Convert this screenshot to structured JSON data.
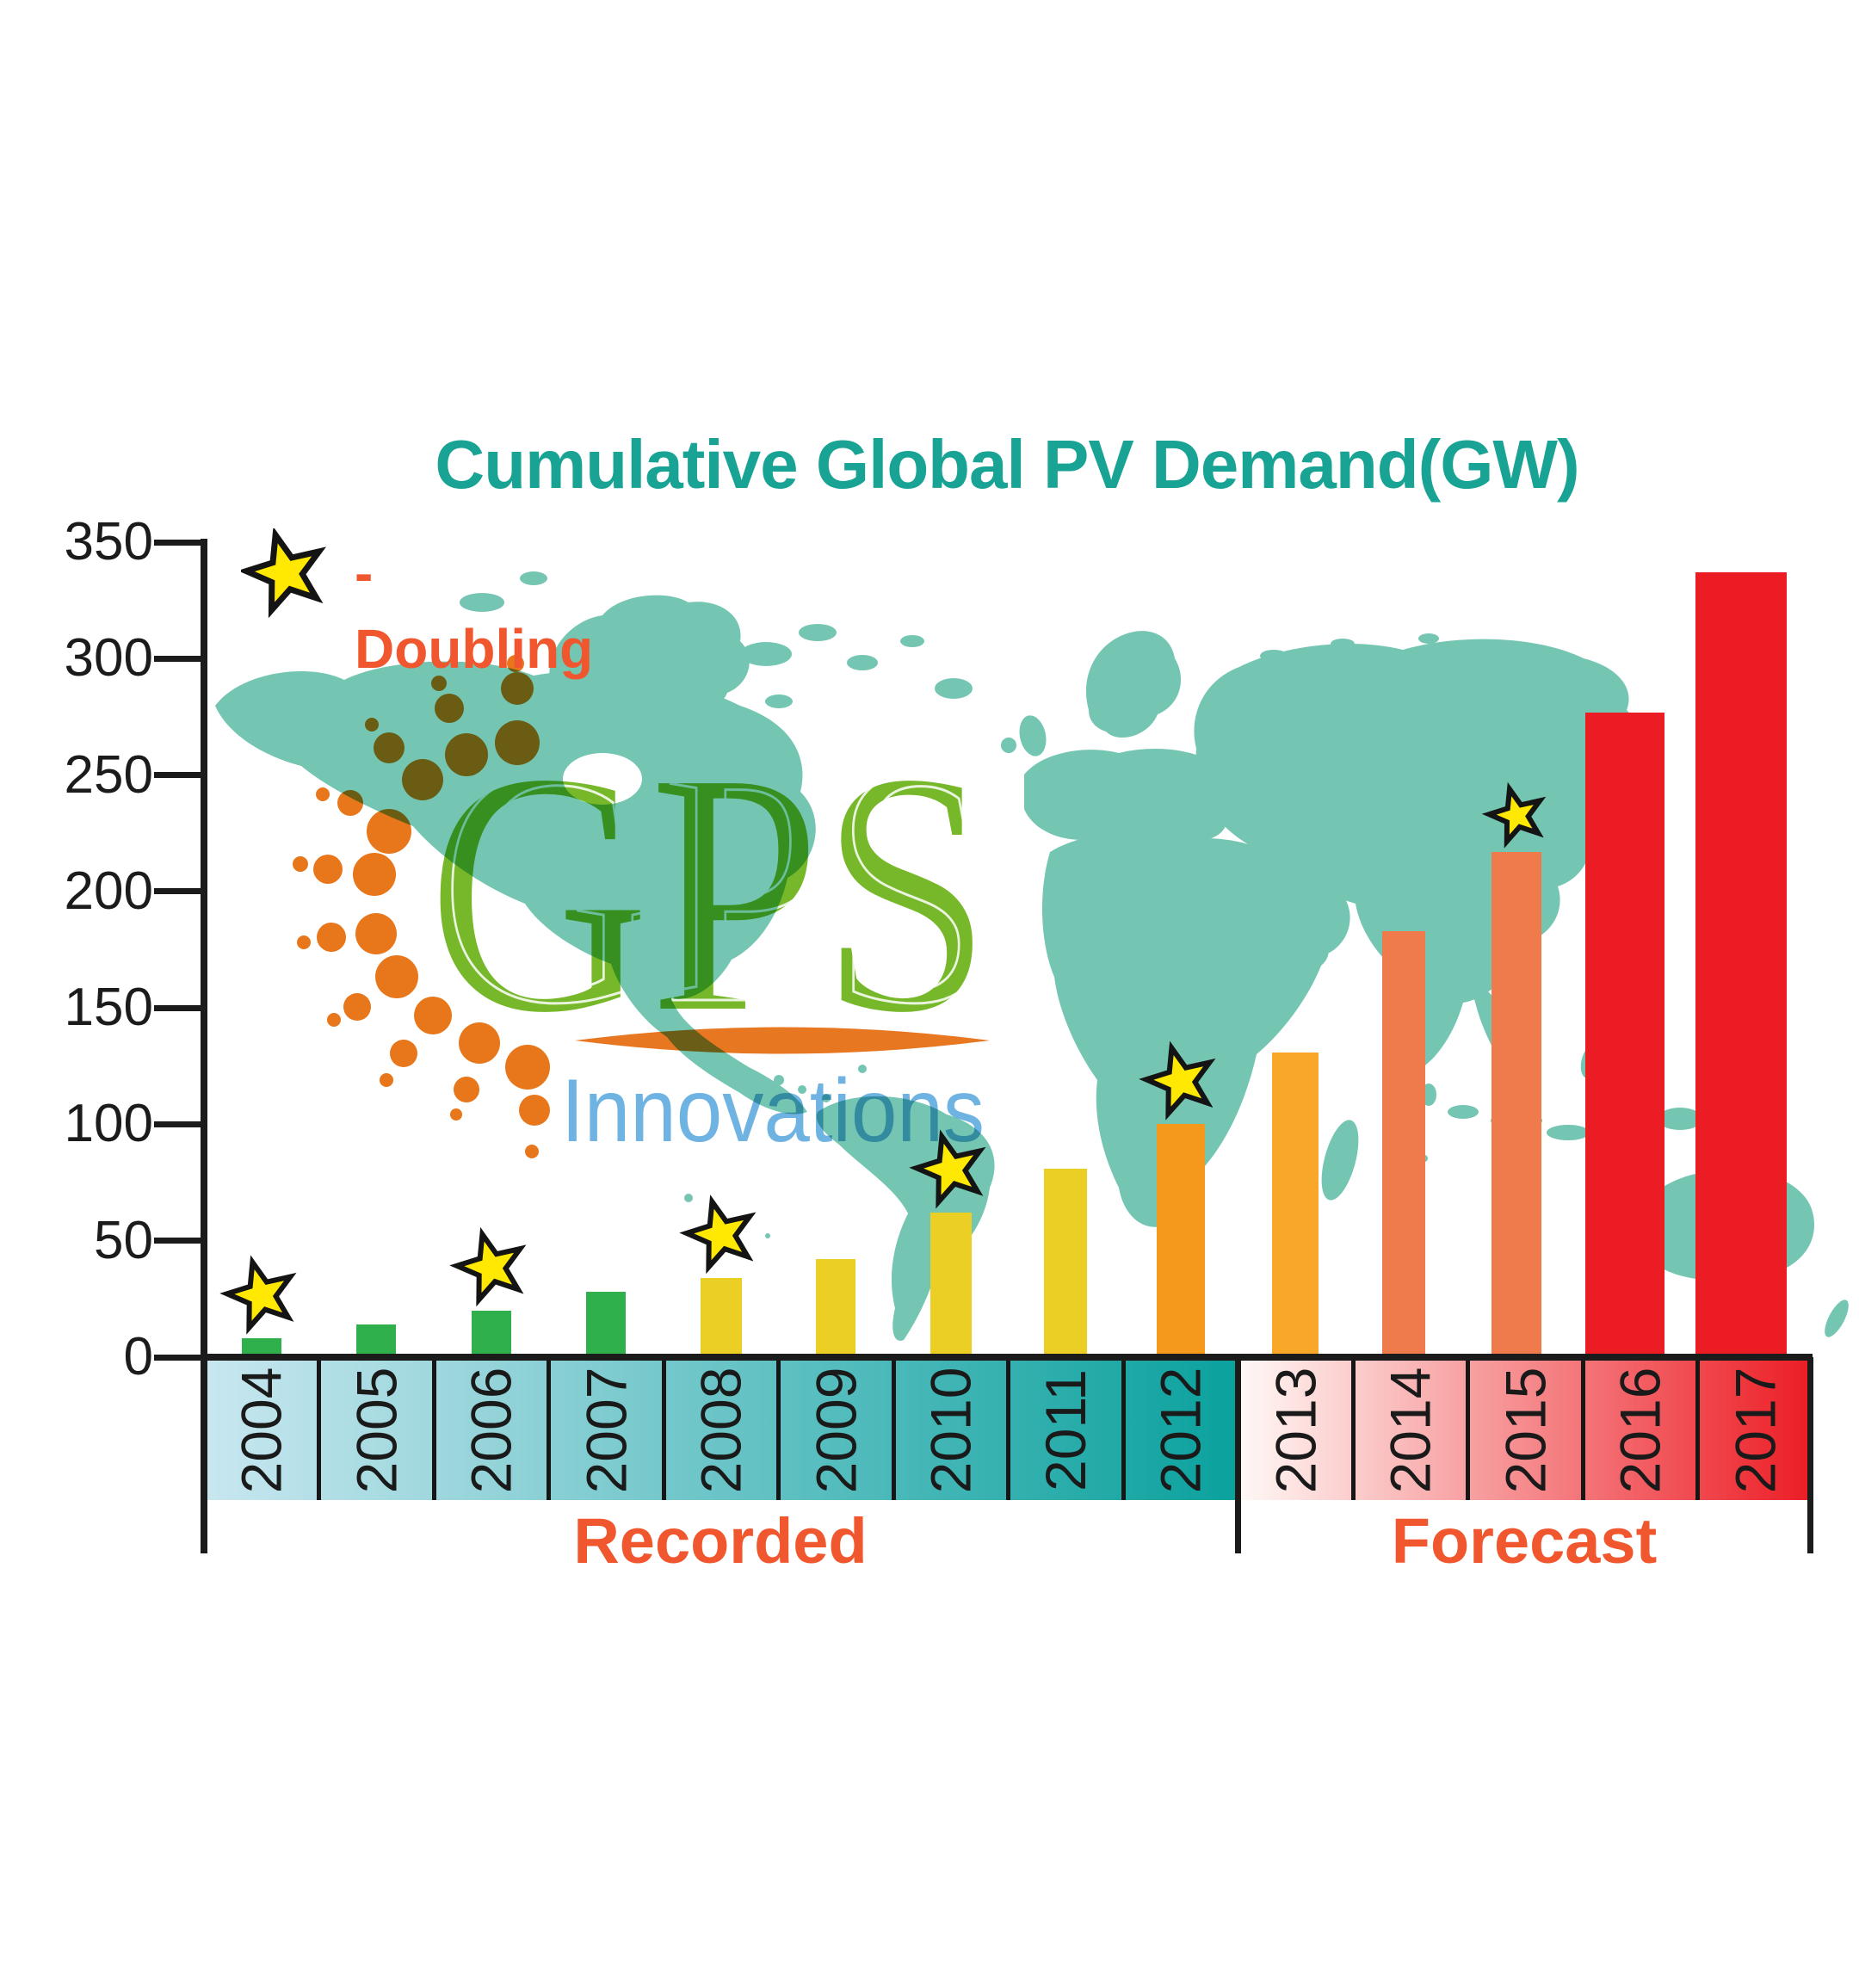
{
  "title": "Cumulative Global PV Demand(GW)",
  "legend": {
    "star_icon": "doubling-star",
    "label": "- Doubling"
  },
  "y_axis": {
    "tick_labels": [
      "0",
      "50",
      "100",
      "150",
      "200",
      "250",
      "300",
      "350"
    ],
    "max": 350
  },
  "sections": [
    {
      "label": "Recorded",
      "from": "2004",
      "to": "2012"
    },
    {
      "label": "Forecast",
      "from": "2013",
      "to": "2017"
    }
  ],
  "logo": {
    "name": "GPS",
    "subtext": "Innovations"
  },
  "colors": {
    "title_teal": "#18A394",
    "map_teal": "#74C6B3",
    "legend_orange": "#F0572E",
    "section_label_orange": "#F0572E",
    "axis_black": "#1b1b1b",
    "star_fill": "#FFE903",
    "star_stroke": "#141414",
    "year_label": "#1a1a1a",
    "band_recorded_start": "#C9E7F0",
    "band_recorded_end": "#0AA19D",
    "band_forecast_start": "#FFF9F6",
    "band_forecast_end": "#EC1C24",
    "logo_green": "#76B82A",
    "logo_dot_orange": "#E8761B",
    "logo_lens_orange": "#E87722",
    "logo_blue": "#6FB3E2"
  },
  "chart_data": {
    "type": "bar",
    "title": "Cumulative Global PV Demand(GW)",
    "legend_note": "star marks a doubling year",
    "categories": [
      "2004",
      "2005",
      "2006",
      "2007",
      "2008",
      "2009",
      "2010",
      "2011",
      "2012",
      "2013",
      "2014",
      "2015",
      "2016",
      "2017"
    ],
    "values": [
      8,
      14,
      20,
      28,
      34,
      42,
      62,
      81,
      100,
      131,
      183,
      217,
      277,
      337
    ],
    "unit": "GW",
    "doubling_years": [
      "2004",
      "2006",
      "2008",
      "2010",
      "2012",
      "2015"
    ],
    "bar_colors": [
      "#2FB04C",
      "#2FB04C",
      "#2FB04C",
      "#2FB04C",
      "#ECCF24",
      "#ECCF24",
      "#ECCF24",
      "#ECCF24",
      "#F5991D",
      "#F9A728",
      "#EF7B4D",
      "#EF7B4D",
      "#EC1C24",
      "#EC1C24"
    ],
    "sections": [
      {
        "label": "Recorded",
        "categories": [
          "2004",
          "2005",
          "2006",
          "2007",
          "2008",
          "2009",
          "2010",
          "2011",
          "2012"
        ]
      },
      {
        "label": "Forecast",
        "categories": [
          "2013",
          "2014",
          "2015",
          "2016",
          "2017"
        ]
      }
    ],
    "ylim": [
      0,
      350
    ],
    "y_ticks": [
      0,
      50,
      100,
      150,
      200,
      250,
      300,
      350
    ],
    "grid": false,
    "legend_position": "top-left"
  }
}
